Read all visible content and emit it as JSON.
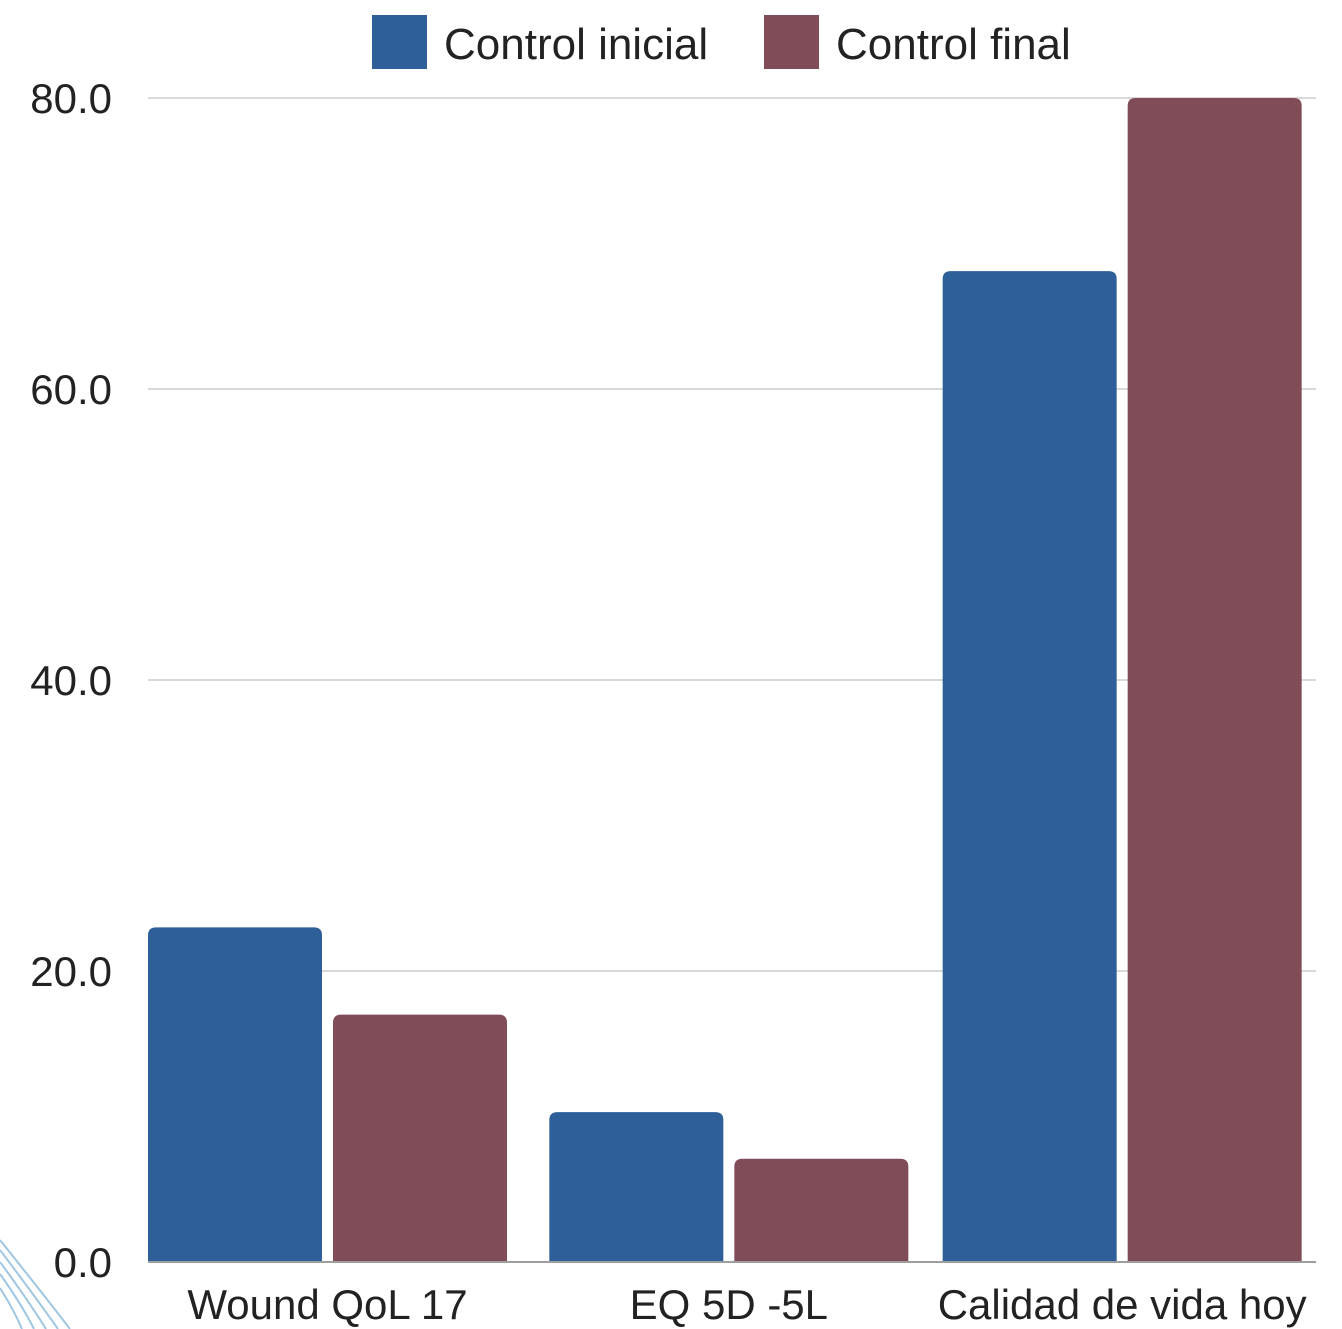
{
  "chart_data": {
    "type": "bar",
    "categories": [
      "Wound QoL 17",
      "EQ 5D -5L",
      "Calidad de vida hoy"
    ],
    "series": [
      {
        "name": "Control inicial",
        "color": "#2e5f99",
        "values": [
          23.0,
          10.3,
          68.1
        ]
      },
      {
        "name": "Control final",
        "color": "#804c57",
        "values": [
          17.0,
          7.1,
          80.0
        ]
      }
    ],
    "y_ticks": [
      "0.0",
      "20.0",
      "40.0",
      "60.0",
      "80.0"
    ],
    "ylim": [
      0,
      80
    ],
    "grid": true,
    "legend_position": "top-center",
    "title": "",
    "xlabel": "",
    "ylabel": ""
  }
}
